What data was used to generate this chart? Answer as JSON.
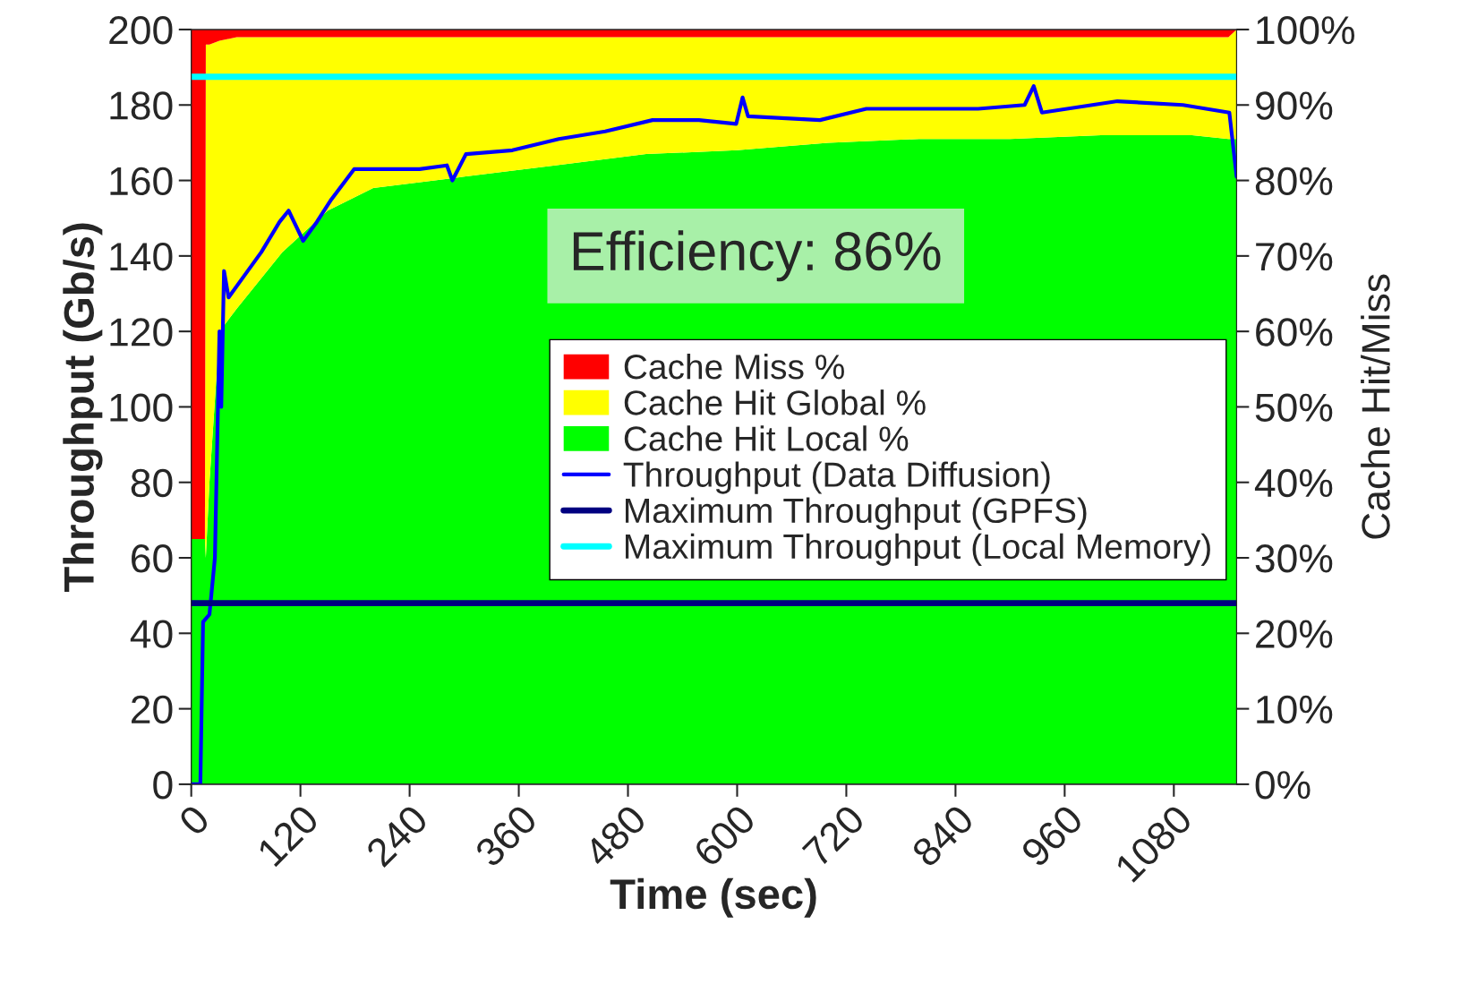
{
  "chart_data": {
    "type": "area",
    "xlabel": "Time (sec)",
    "ylabel": "Throughput (Gb/s)",
    "y2label": "Cache Hit/Miss",
    "stacked": true,
    "legend": "center right",
    "grid": false,
    "marker": "none",
    "line_style": "solid",
    "annotations": [
      "Efficiency: 86%"
    ],
    "xlim": [
      0,
      1149
    ],
    "xticks": [
      0,
      120,
      240,
      360,
      480,
      600,
      720,
      840,
      960,
      1080
    ],
    "ylim": [
      0,
      200
    ],
    "yticks": [
      0,
      20,
      40,
      60,
      80,
      100,
      120,
      140,
      160,
      180,
      200
    ],
    "y2lim": [
      0,
      100
    ],
    "y2ticks": [
      {
        "value": 0,
        "label": "0%"
      },
      {
        "value": 10,
        "label": "10%"
      },
      {
        "value": 20,
        "label": "20%"
      },
      {
        "value": 30,
        "label": "30%"
      },
      {
        "value": 40,
        "label": "40%"
      },
      {
        "value": 50,
        "label": "50%"
      },
      {
        "value": 60,
        "label": "60%"
      },
      {
        "value": 70,
        "label": "70%"
      },
      {
        "value": 80,
        "label": "80%"
      },
      {
        "value": 90,
        "label": "90%"
      },
      {
        "value": 100,
        "label": "100%"
      }
    ],
    "x": [
      0,
      8,
      9,
      15,
      16,
      20,
      31,
      50,
      100,
      150,
      200,
      300,
      400,
      500,
      600,
      700,
      800,
      900,
      1000,
      1100,
      1140,
      1149
    ],
    "series": [
      {
        "name": "Cache Hit Local %",
        "axis": "y2",
        "color": "#00ff00",
        "values": [
          32.5,
          32.5,
          32.5,
          32.5,
          30,
          40,
          60,
          63,
          70.5,
          76,
          79,
          80.5,
          82,
          83.5,
          84,
          85,
          85.5,
          85.5,
          86,
          86,
          85.5,
          85.5
        ]
      },
      {
        "name": "Cache Hit Global %",
        "axis": "y2",
        "color": "#ffff00",
        "values": [
          0,
          0,
          0,
          0,
          68,
          58,
          38.5,
          36,
          28.5,
          23,
          20,
          18.5,
          17,
          15.5,
          15,
          14,
          13.5,
          13.5,
          13,
          13,
          13.5,
          14.5
        ]
      },
      {
        "name": "Cache Miss %",
        "axis": "y2",
        "color": "#ff0000",
        "values": [
          67.5,
          67.5,
          67.5,
          67.5,
          2,
          2,
          1.5,
          1,
          1,
          1,
          1,
          1,
          1,
          1,
          1,
          1,
          1,
          1,
          1,
          1,
          1,
          0
        ]
      },
      {
        "name": "Throughput (Data Diffusion)",
        "type": "line",
        "axis": "y",
        "color": "#0000ff",
        "x": [
          0,
          10,
          13,
          20,
          26,
          31,
          33,
          36,
          41,
          56,
          77,
          97,
          107,
          123,
          138,
          154,
          179,
          220,
          251,
          281,
          287,
          302,
          353,
          404,
          455,
          507,
          558,
          599,
          606,
          612,
          691,
          742,
          803,
          865,
          916,
          926,
          935,
          1018,
          1090,
          1141,
          1149
        ],
        "values": [
          0,
          0,
          43,
          45,
          60,
          120,
          100,
          136,
          129,
          134,
          141,
          149,
          152,
          144,
          149,
          155,
          163,
          163,
          163,
          164,
          160,
          167,
          168,
          171,
          173,
          176,
          176,
          175,
          182,
          177,
          176,
          179,
          179,
          179,
          180,
          185,
          178,
          181,
          180,
          178,
          161
        ]
      },
      {
        "name": "Maximum Throughput (GPFS)",
        "type": "line",
        "axis": "y",
        "color": "#000080",
        "x": [
          0,
          1149
        ],
        "values": [
          48,
          48
        ]
      },
      {
        "name": "Maximum Throughput (Local Memory)",
        "type": "line",
        "axis": "y",
        "color": "#00ffff",
        "x": [
          0,
          1149
        ],
        "values": [
          187.5,
          187.5
        ]
      }
    ]
  }
}
